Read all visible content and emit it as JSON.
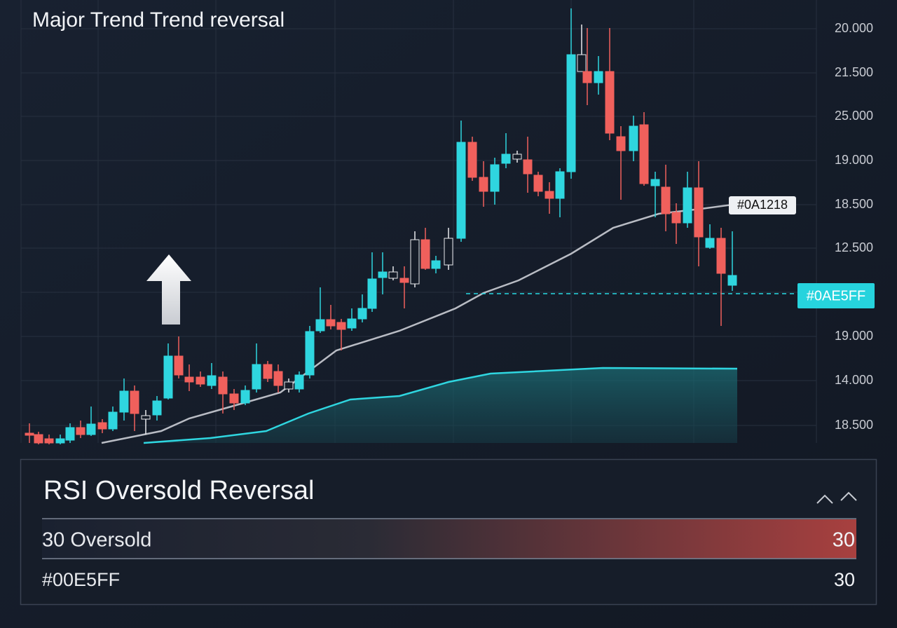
{
  "header": {
    "title": "Major Trend Trend reversal"
  },
  "price_axis": [
    "20.000",
    "21.500",
    "25.000",
    "19.000",
    "18.500",
    "12.500",
    "19.000",
    "14.000",
    "18.500"
  ],
  "tags": {
    "line": "#0A1218",
    "price": "#0AE5FF"
  },
  "panel": {
    "title": "RSI Oversold Reversal",
    "rows": [
      {
        "label": "30 Oversold",
        "value": 30
      },
      {
        "label": "#00E5FF",
        "value": 30
      }
    ]
  }
}
